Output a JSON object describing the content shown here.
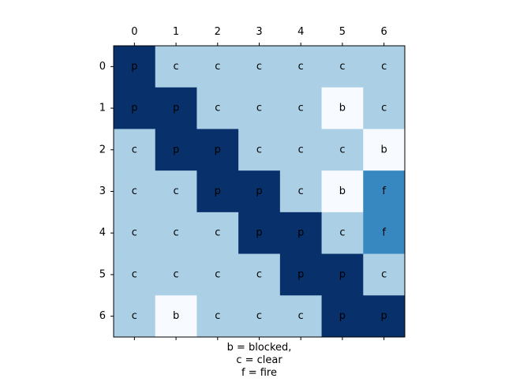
{
  "chart_data": {
    "type": "heatmap",
    "x_ticks": [
      "0",
      "1",
      "2",
      "3",
      "4",
      "5",
      "6"
    ],
    "y_ticks": [
      "0",
      "1",
      "2",
      "3",
      "4",
      "5",
      "6"
    ],
    "grid": [
      [
        "p",
        "c",
        "c",
        "c",
        "c",
        "c",
        "c"
      ],
      [
        "p",
        "p",
        "c",
        "c",
        "c",
        "b",
        "c"
      ],
      [
        "c",
        "p",
        "p",
        "c",
        "c",
        "c",
        "b"
      ],
      [
        "c",
        "c",
        "p",
        "p",
        "c",
        "b",
        "f"
      ],
      [
        "c",
        "c",
        "c",
        "p",
        "p",
        "c",
        "f"
      ],
      [
        "c",
        "c",
        "c",
        "c",
        "p",
        "p",
        "c"
      ],
      [
        "c",
        "b",
        "c",
        "c",
        "c",
        "p",
        "p"
      ]
    ],
    "colors": {
      "p": "#08306b",
      "c": "#abd0e6",
      "b": "#f7fbff",
      "f": "#3787c0"
    },
    "xlabel_lines": [
      "b = blocked,",
      "c = clear",
      "f = fire"
    ],
    "x_tick_position": "top",
    "bottom_tick_marks": [
      "",
      "",
      "",
      "",
      "",
      "",
      ""
    ],
    "grid_lines": false
  }
}
